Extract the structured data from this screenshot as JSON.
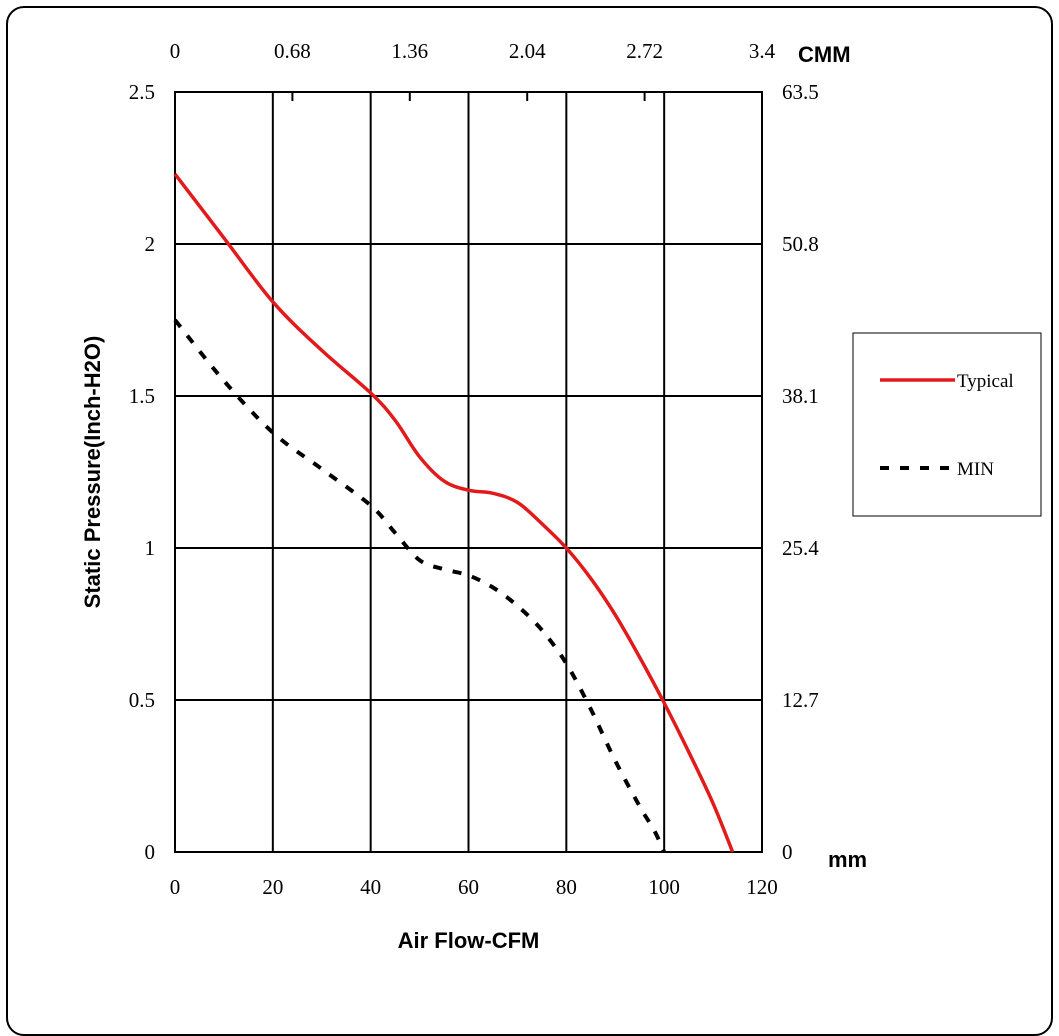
{
  "chart_data": {
    "type": "line",
    "title": "",
    "xlabel": "Air Flow-CFM",
    "ylabel": "Static Pressure(Inch-H2O)",
    "xlim": [
      0,
      120
    ],
    "ylim": [
      0,
      2.5
    ],
    "x_ticks": [
      0,
      20,
      40,
      60,
      80,
      100,
      120
    ],
    "y_ticks": [
      0,
      0.5,
      1,
      1.5,
      2,
      2.5
    ],
    "x_tick_labels": [
      "0",
      "20",
      "40",
      "60",
      "80",
      "100",
      "120"
    ],
    "y_tick_labels": [
      "0",
      "0.5",
      "1",
      "1.5",
      "2",
      "2.5"
    ],
    "top_axis": {
      "unit": "CMM",
      "tick_labels": [
        "0",
        "0.68",
        "1.36",
        "2.04",
        "2.72",
        "3.4"
      ]
    },
    "right_axis": {
      "unit": "mm",
      "tick_labels": [
        "0",
        "12.7",
        "25.4",
        "38.1",
        "50.8",
        "63.5"
      ]
    },
    "grid": true,
    "legend_position": "right",
    "series": [
      {
        "name": "Typical",
        "color": "#e31a1c",
        "style": "solid",
        "x": [
          0,
          10,
          20,
          30,
          40,
          45,
          50,
          55,
          60,
          65,
          70,
          75,
          80,
          85,
          90,
          95,
          100,
          105,
          110,
          114
        ],
        "y": [
          2.23,
          2.02,
          1.81,
          1.65,
          1.51,
          1.42,
          1.3,
          1.22,
          1.19,
          1.18,
          1.15,
          1.08,
          1.0,
          0.9,
          0.78,
          0.64,
          0.49,
          0.33,
          0.16,
          0.0
        ]
      },
      {
        "name": "MIN",
        "color": "#000000",
        "style": "dashed",
        "x": [
          0,
          10,
          20,
          30,
          40,
          45,
          50,
          55,
          60,
          65,
          70,
          75,
          80,
          85,
          90,
          95,
          98,
          100
        ],
        "y": [
          1.75,
          1.55,
          1.38,
          1.26,
          1.14,
          1.05,
          0.96,
          0.93,
          0.91,
          0.87,
          0.81,
          0.73,
          0.62,
          0.47,
          0.3,
          0.15,
          0.07,
          0.0
        ]
      }
    ]
  }
}
